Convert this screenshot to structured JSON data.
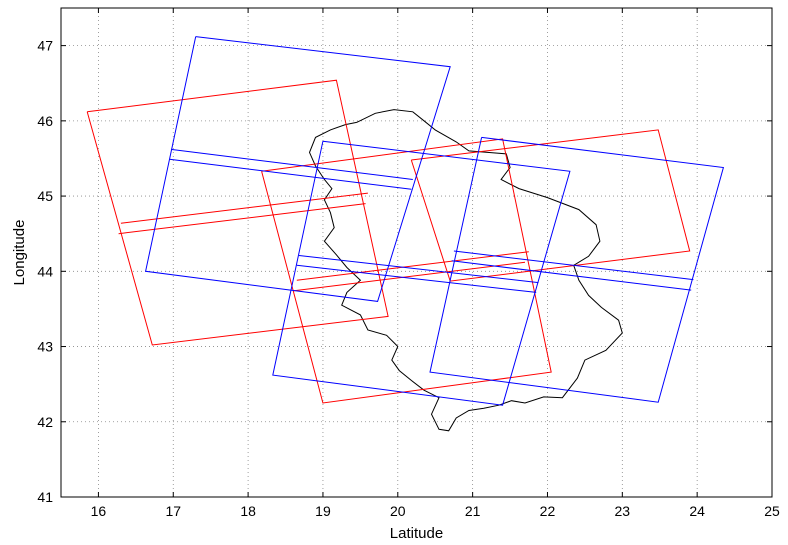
{
  "chart_data": {
    "type": "line",
    "title": "",
    "xlabel": "Latitude",
    "ylabel": "Longitude",
    "xlim": [
      15.5,
      25
    ],
    "ylim": [
      41,
      47.5
    ],
    "xticks": [
      16,
      17,
      18,
      19,
      20,
      21,
      22,
      23,
      24,
      25
    ],
    "yticks": [
      41,
      42,
      43,
      44,
      45,
      46,
      47
    ],
    "grid": true,
    "colors": {
      "red": "#ff0000",
      "blue": "#0000ff",
      "outline": "#000000",
      "grid": "#888888"
    },
    "red_footprints": [
      [
        [
          15.85,
          46.12
        ],
        [
          19.18,
          46.54
        ],
        [
          19.87,
          43.4
        ],
        [
          16.72,
          43.02
        ],
        [
          15.85,
          46.12
        ]
      ],
      [
        [
          18.18,
          45.33
        ],
        [
          21.4,
          45.76
        ],
        [
          22.05,
          42.66
        ],
        [
          19.0,
          42.25
        ],
        [
          18.18,
          45.33
        ]
      ],
      [
        [
          20.18,
          45.48
        ],
        [
          23.48,
          45.88
        ],
        [
          23.9,
          44.27
        ],
        [
          20.7,
          43.87
        ],
        [
          20.18,
          45.48
        ]
      ]
    ],
    "red_strips": [
      [
        [
          16.3,
          44.64
        ],
        [
          19.6,
          45.04
        ]
      ],
      [
        [
          16.27,
          44.5
        ],
        [
          19.57,
          44.9
        ]
      ],
      [
        [
          18.65,
          43.88
        ],
        [
          21.75,
          44.26
        ]
      ],
      [
        [
          18.6,
          43.74
        ],
        [
          21.7,
          44.12
        ]
      ]
    ],
    "blue_footprints": [
      [
        [
          17.3,
          47.12
        ],
        [
          20.7,
          46.72
        ],
        [
          19.73,
          43.6
        ],
        [
          16.63,
          44.0
        ],
        [
          17.3,
          47.12
        ]
      ],
      [
        [
          19.0,
          45.73
        ],
        [
          22.3,
          45.33
        ],
        [
          21.4,
          42.22
        ],
        [
          18.33,
          42.62
        ],
        [
          19.0,
          45.73
        ]
      ],
      [
        [
          21.12,
          45.78
        ],
        [
          24.35,
          45.38
        ],
        [
          23.48,
          42.26
        ],
        [
          20.43,
          42.66
        ],
        [
          21.12,
          45.78
        ]
      ]
    ],
    "blue_strips": [
      [
        [
          16.97,
          45.62
        ],
        [
          20.2,
          45.22
        ]
      ],
      [
        [
          16.95,
          45.49
        ],
        [
          20.18,
          45.09
        ]
      ],
      [
        [
          18.68,
          44.21
        ],
        [
          21.88,
          43.85
        ]
      ],
      [
        [
          18.65,
          44.08
        ],
        [
          21.85,
          43.72
        ]
      ],
      [
        [
          20.75,
          44.27
        ],
        [
          23.95,
          43.89
        ]
      ],
      [
        [
          20.72,
          44.14
        ],
        [
          23.92,
          43.75
        ]
      ]
    ],
    "country_outline": [
      [
        19.45,
        45.98
      ],
      [
        19.7,
        46.1
      ],
      [
        19.95,
        46.15
      ],
      [
        20.2,
        46.12
      ],
      [
        20.35,
        46.0
      ],
      [
        20.5,
        45.88
      ],
      [
        20.78,
        45.72
      ],
      [
        20.95,
        45.6
      ],
      [
        21.2,
        45.58
      ],
      [
        21.45,
        45.56
      ],
      [
        21.5,
        45.38
      ],
      [
        21.38,
        45.22
      ],
      [
        21.62,
        45.1
      ],
      [
        22.0,
        44.98
      ],
      [
        22.42,
        44.82
      ],
      [
        22.65,
        44.62
      ],
      [
        22.7,
        44.4
      ],
      [
        22.55,
        44.2
      ],
      [
        22.35,
        44.08
      ],
      [
        22.42,
        43.88
      ],
      [
        22.55,
        43.68
      ],
      [
        22.72,
        43.52
      ],
      [
        22.95,
        43.35
      ],
      [
        23.0,
        43.18
      ],
      [
        22.78,
        42.95
      ],
      [
        22.5,
        42.82
      ],
      [
        22.4,
        42.58
      ],
      [
        22.2,
        42.32
      ],
      [
        21.95,
        42.33
      ],
      [
        21.7,
        42.25
      ],
      [
        21.52,
        42.28
      ],
      [
        21.35,
        42.22
      ],
      [
        21.15,
        42.18
      ],
      [
        20.95,
        42.15
      ],
      [
        20.78,
        42.05
      ],
      [
        20.68,
        41.88
      ],
      [
        20.55,
        41.9
      ],
      [
        20.45,
        42.1
      ],
      [
        20.55,
        42.32
      ],
      [
        20.35,
        42.42
      ],
      [
        20.18,
        42.55
      ],
      [
        20.02,
        42.68
      ],
      [
        19.92,
        42.82
      ],
      [
        20.0,
        43.0
      ],
      [
        19.85,
        43.15
      ],
      [
        19.6,
        43.22
      ],
      [
        19.5,
        43.42
      ],
      [
        19.25,
        43.55
      ],
      [
        19.32,
        43.72
      ],
      [
        19.5,
        43.88
      ],
      [
        19.32,
        44.05
      ],
      [
        19.18,
        44.22
      ],
      [
        19.02,
        44.4
      ],
      [
        19.15,
        44.58
      ],
      [
        19.1,
        44.78
      ],
      [
        19.02,
        44.95
      ],
      [
        19.12,
        45.1
      ],
      [
        19.02,
        45.22
      ],
      [
        18.9,
        45.4
      ],
      [
        18.82,
        45.58
      ],
      [
        18.9,
        45.78
      ],
      [
        19.1,
        45.88
      ],
      [
        19.3,
        45.95
      ],
      [
        19.45,
        45.98
      ]
    ]
  }
}
